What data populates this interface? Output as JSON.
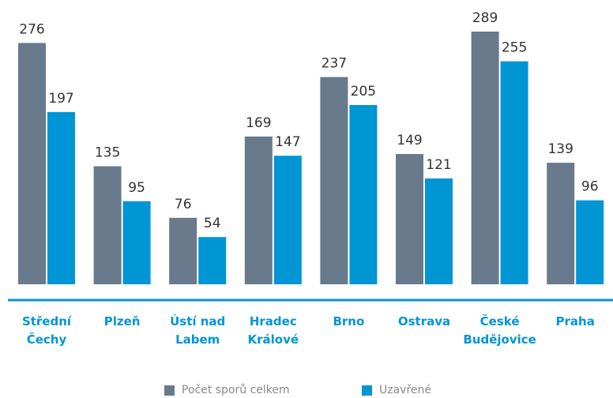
{
  "chart_data": {
    "type": "bar",
    "categories": [
      "Střední Čechy",
      "Plzeň",
      "Ústí nad Labem",
      "Hradec Králové",
      "Brno",
      "Ostrava",
      "České Budějovice",
      "Praha"
    ],
    "series": [
      {
        "name": "Počet sporů celkem",
        "color": "#687a8c",
        "values": [
          276,
          135,
          76,
          169,
          237,
          149,
          289,
          139
        ]
      },
      {
        "name": "Uzavřené",
        "color": "#0095d5",
        "values": [
          197,
          95,
          54,
          147,
          205,
          121,
          255,
          96
        ]
      }
    ]
  }
}
